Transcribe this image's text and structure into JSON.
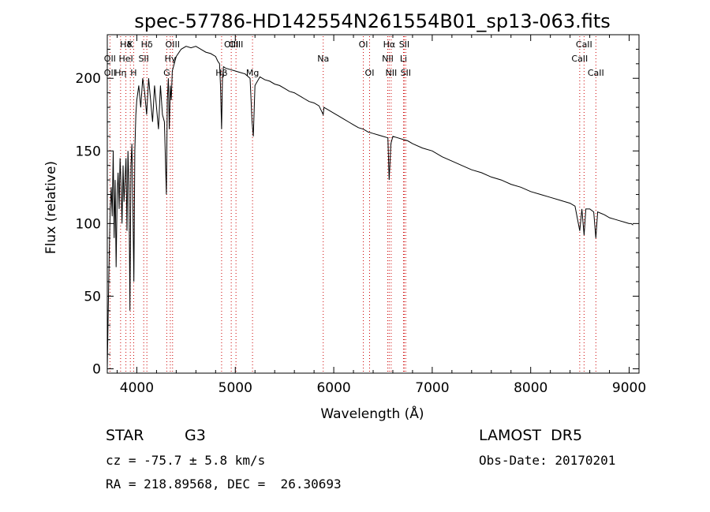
{
  "chart_data": {
    "type": "line",
    "title": "spec-57786-HD142554N261554B01_sp13-063.fits",
    "xlabel": "Wavelength (Å)",
    "ylabel": "Flux (relative)",
    "xlim": [
      3700,
      9100
    ],
    "ylim": [
      -3,
      230
    ],
    "xticks": [
      4000,
      5000,
      6000,
      7000,
      8000,
      9000
    ],
    "yticks": [
      0,
      50,
      100,
      150,
      200
    ],
    "grid": false,
    "series": [
      {
        "x": [
          3700,
          3710,
          3720,
          3730,
          3740,
          3750,
          3760,
          3770,
          3780,
          3790,
          3800,
          3810,
          3820,
          3830,
          3840,
          3850,
          3860,
          3870,
          3880,
          3890,
          3900,
          3910,
          3920,
          3930,
          3940,
          3950,
          3960,
          3970,
          3980,
          3990,
          4000,
          4020,
          4040,
          4060,
          4080,
          4100,
          4120,
          4140,
          4160,
          4180,
          4200,
          4220,
          4240,
          4260,
          4280,
          4300,
          4310,
          4320,
          4330,
          4340,
          4350,
          4360,
          4380,
          4400,
          4450,
          4500,
          4550,
          4600,
          4650,
          4700,
          4750,
          4800,
          4820,
          4840,
          4850,
          4861,
          4870,
          4880,
          4900,
          4950,
          5000,
          5050,
          5100,
          5150,
          5170,
          5183,
          5200,
          5250,
          5300,
          5350,
          5400,
          5450,
          5500,
          5550,
          5600,
          5650,
          5700,
          5750,
          5800,
          5850,
          5893,
          5900,
          5950,
          6000,
          6050,
          6100,
          6150,
          6200,
          6250,
          6300,
          6350,
          6400,
          6450,
          6500,
          6550,
          6563,
          6580,
          6600,
          6650,
          6700,
          6750,
          6800,
          6900,
          7000,
          7100,
          7200,
          7300,
          7400,
          7500,
          7600,
          7700,
          7800,
          7900,
          8000,
          8100,
          8200,
          8300,
          8400,
          8450,
          8498,
          8520,
          8542,
          8560,
          8600,
          8640,
          8662,
          8680,
          8750,
          8800,
          8850,
          8900,
          8950,
          9000,
          9020,
          9040
        ],
        "values": [
          0,
          40,
          80,
          110,
          125,
          105,
          150,
          90,
          130,
          70,
          120,
          135,
          110,
          145,
          125,
          100,
          140,
          115,
          130,
          145,
          95,
          150,
          125,
          40,
          140,
          155,
          110,
          60,
          150,
          175,
          185,
          195,
          180,
          200,
          190,
          175,
          200,
          185,
          170,
          195,
          180,
          165,
          195,
          175,
          170,
          120,
          185,
          200,
          165,
          195,
          185,
          205,
          210,
          215,
          220,
          222,
          221,
          222,
          220,
          218,
          217,
          215,
          212,
          210,
          195,
          165,
          200,
          208,
          207,
          206,
          205,
          204,
          203,
          200,
          170,
          160,
          195,
          201,
          199,
          198,
          196,
          195,
          193,
          191,
          190,
          188,
          186,
          184,
          183,
          181,
          175,
          180,
          178,
          176,
          174,
          172,
          170,
          168,
          166,
          165,
          163,
          162,
          161,
          160,
          159,
          130,
          155,
          160,
          159,
          158,
          157,
          155,
          152,
          150,
          146,
          143,
          140,
          137,
          135,
          132,
          130,
          127,
          125,
          122,
          120,
          118,
          116,
          114,
          112,
          95,
          110,
          92,
          110,
          110,
          108,
          90,
          108,
          106,
          104,
          103,
          102,
          101,
          100,
          100,
          99
        ]
      }
    ],
    "line_labels": [
      {
        "label": "Hδ",
        "x": 3889
      },
      {
        "label": "K",
        "x": 3934
      },
      {
        "label": "Hδ",
        "x": 4102
      },
      {
        "label": "OIII",
        "x": 4363
      },
      {
        "label": "OII",
        "x": 3727
      },
      {
        "label": "HeI",
        "x": 3889
      },
      {
        "label": "SII",
        "x": 4070
      },
      {
        "label": "Hγ",
        "x": 4340
      },
      {
        "label": "OIII",
        "x": 4959
      },
      {
        "label": "OIII",
        "x": 5007
      },
      {
        "label": "OII",
        "x": 3727
      },
      {
        "label": "Hη",
        "x": 3835
      },
      {
        "label": "H",
        "x": 3968
      },
      {
        "label": "G",
        "x": 4304
      },
      {
        "label": "Hβ",
        "x": 4861
      },
      {
        "label": "Mg",
        "x": 5175
      },
      {
        "label": "Na",
        "x": 5893
      },
      {
        "label": "OI",
        "x": 6300
      },
      {
        "label": "OI",
        "x": 6364
      },
      {
        "label": "Hα",
        "x": 6563
      },
      {
        "label": "SII",
        "x": 6716
      },
      {
        "label": "NII",
        "x": 6548
      },
      {
        "label": "Li",
        "x": 6708
      },
      {
        "label": "NII",
        "x": 6583
      },
      {
        "label": "SII",
        "x": 6731
      },
      {
        "label": "CaII",
        "x": 8542
      },
      {
        "label": "CaII",
        "x": 8498
      },
      {
        "label": "CaII",
        "x": 8662
      }
    ]
  },
  "info": {
    "class_label": "STAR",
    "subclass_label": "G3",
    "survey": "LAMOST  DR5",
    "cz_text": "cz = -75.7 ± 5.8 km/s",
    "obs_date": "Obs-Date: 20170201",
    "coords": "RA = 218.89568, DEC =  26.30693"
  }
}
